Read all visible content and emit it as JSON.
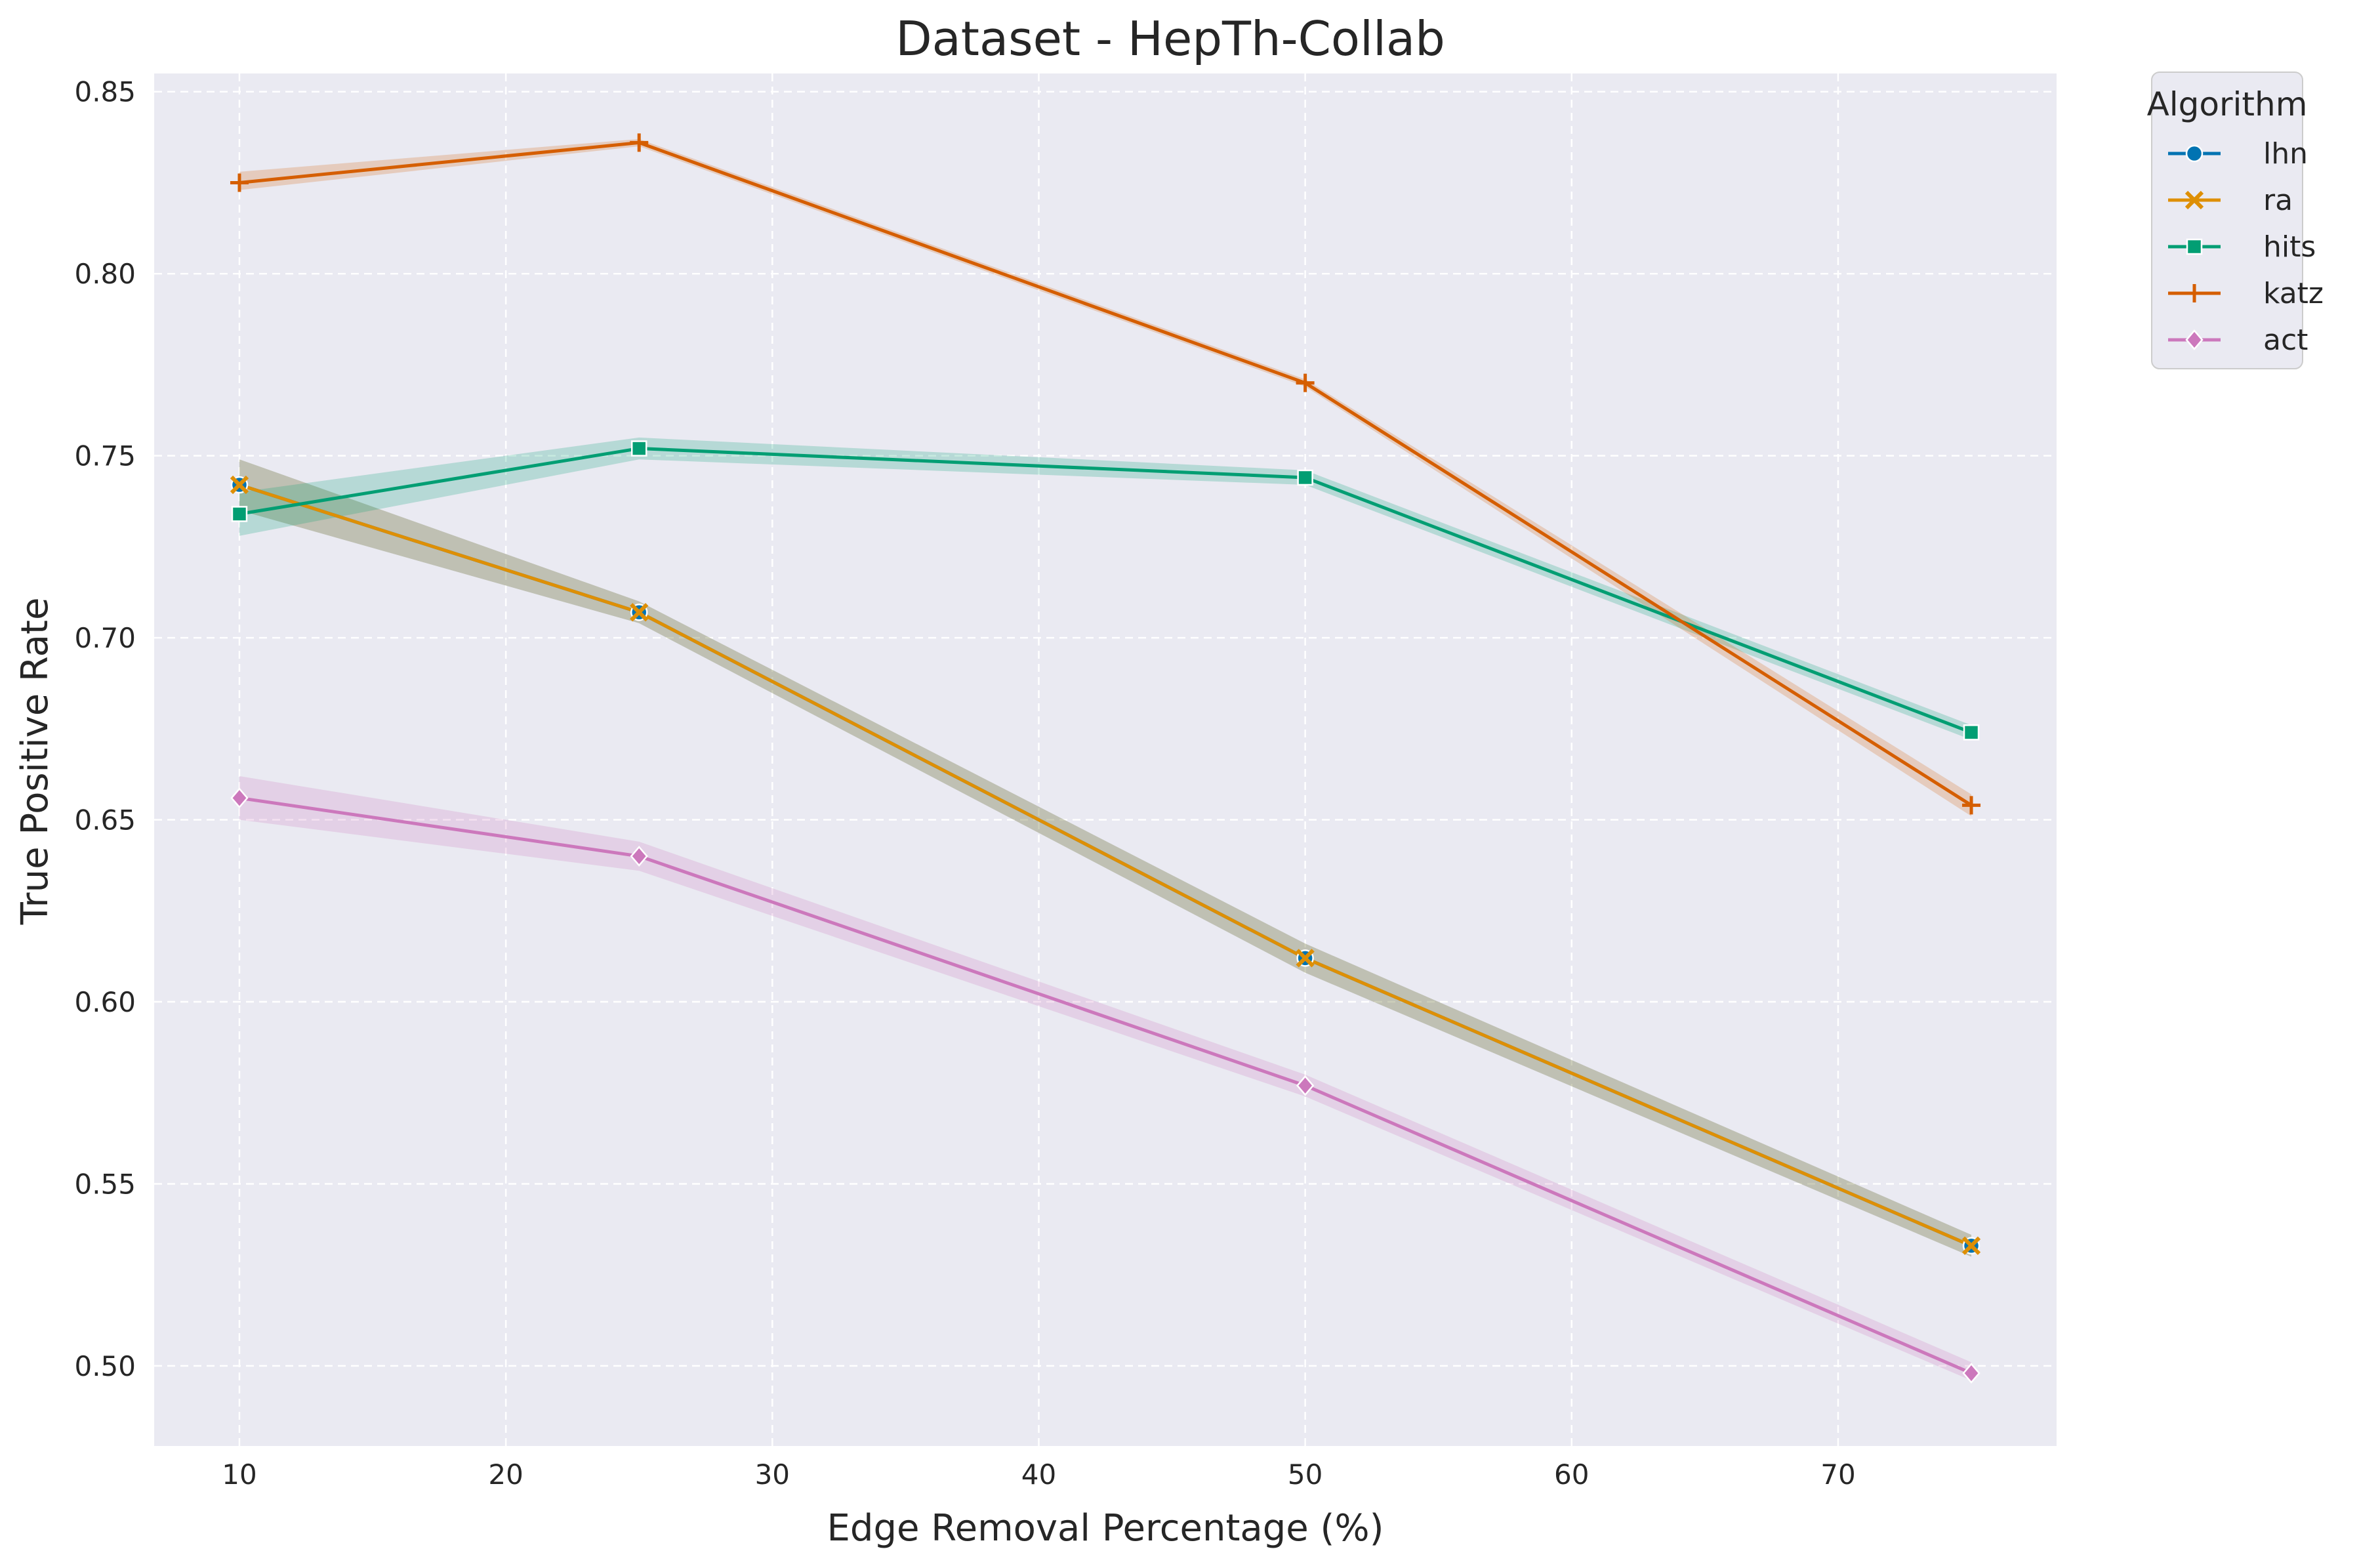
{
  "chart_data": {
    "type": "line",
    "title": "Dataset - HepTh-Collab",
    "xlabel": "Edge Removal Percentage (%)",
    "ylabel": "True Positive Rate",
    "xlim": [
      6.8,
      78.2
    ],
    "ylim": [
      0.478,
      0.855
    ],
    "xticks": [
      10,
      20,
      30,
      40,
      50,
      60,
      70
    ],
    "xtick_labels": [
      "10",
      "20",
      "30",
      "40",
      "50",
      "60",
      "70"
    ],
    "yticks": [
      0.5,
      0.55,
      0.6,
      0.65,
      0.7,
      0.75,
      0.8,
      0.85
    ],
    "ytick_labels": [
      "0.50",
      "0.55",
      "0.60",
      "0.65",
      "0.70",
      "0.75",
      "0.80",
      "0.85"
    ],
    "grid": true,
    "legend": {
      "title": "Algorithm",
      "placement": "outside-top-right"
    },
    "x": [
      10,
      25,
      50,
      75
    ],
    "series": [
      {
        "name": "lhn",
        "color": "#0173b2",
        "marker": "circle",
        "values": [
          0.742,
          0.707,
          0.612,
          0.533
        ],
        "ci_low": [
          0.735,
          0.704,
          0.608,
          0.53
        ],
        "ci_high": [
          0.749,
          0.71,
          0.616,
          0.536
        ]
      },
      {
        "name": "ra",
        "color": "#de8f05",
        "marker": "x",
        "values": [
          0.742,
          0.707,
          0.612,
          0.533
        ],
        "ci_low": [
          0.735,
          0.704,
          0.608,
          0.53
        ],
        "ci_high": [
          0.749,
          0.71,
          0.616,
          0.536
        ]
      },
      {
        "name": "hits",
        "color": "#029e73",
        "marker": "square",
        "values": [
          0.734,
          0.752,
          0.744,
          0.674
        ],
        "ci_low": [
          0.728,
          0.749,
          0.742,
          0.672
        ],
        "ci_high": [
          0.74,
          0.755,
          0.746,
          0.676
        ]
      },
      {
        "name": "katz",
        "color": "#d55e00",
        "marker": "plus",
        "values": [
          0.825,
          0.836,
          0.77,
          0.654
        ],
        "ci_low": [
          0.823,
          0.835,
          0.769,
          0.651
        ],
        "ci_high": [
          0.828,
          0.837,
          0.771,
          0.657
        ]
      },
      {
        "name": "act",
        "color": "#cc78bc",
        "marker": "diamond",
        "values": [
          0.656,
          0.64,
          0.577,
          0.498
        ],
        "ci_low": [
          0.65,
          0.636,
          0.574,
          0.496
        ],
        "ci_high": [
          0.662,
          0.644,
          0.58,
          0.501
        ]
      }
    ]
  }
}
